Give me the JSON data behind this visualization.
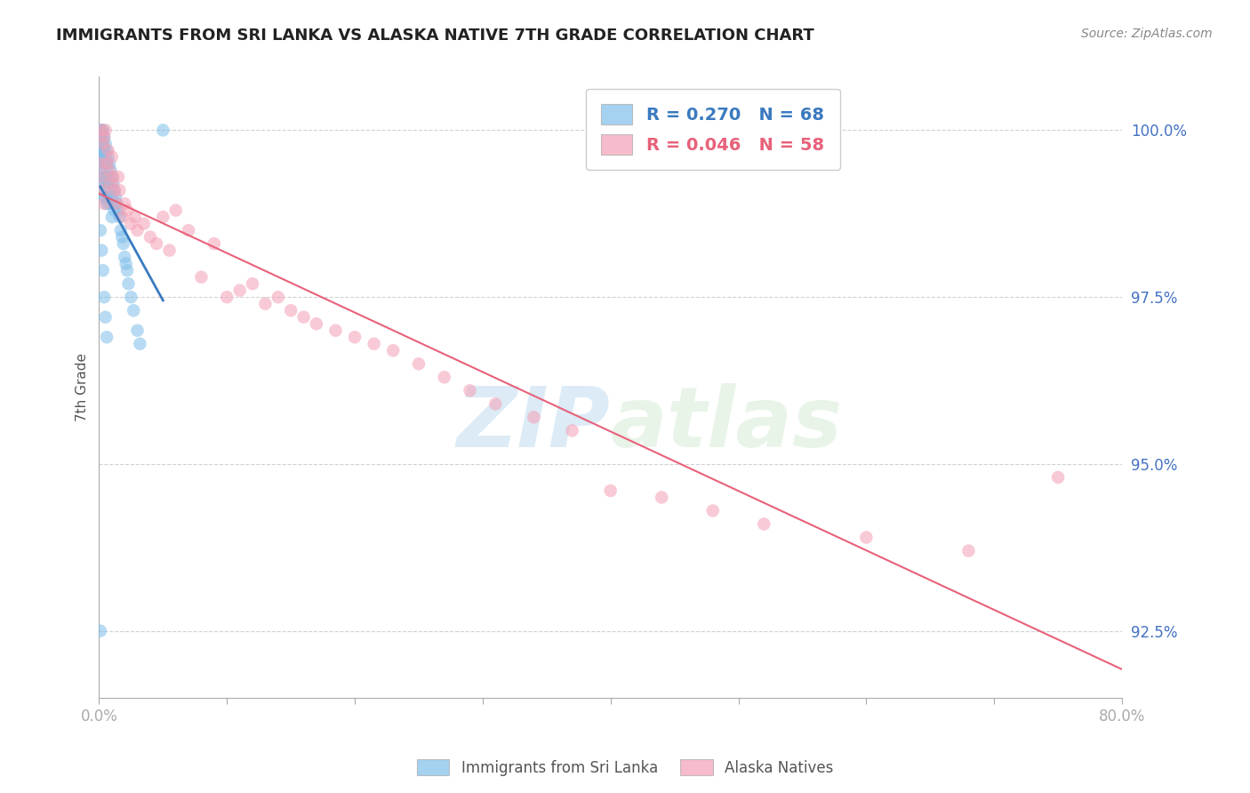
{
  "title": "IMMIGRANTS FROM SRI LANKA VS ALASKA NATIVE 7TH GRADE CORRELATION CHART",
  "source": "Source: ZipAtlas.com",
  "ylabel": "7th Grade",
  "xlim": [
    0.0,
    0.8
  ],
  "ylim": [
    91.5,
    100.8
  ],
  "xtick_values": [
    0.0,
    0.1,
    0.2,
    0.3,
    0.4,
    0.5,
    0.6,
    0.7,
    0.8
  ],
  "xtick_labels_visible": {
    "0.0": "0.0%",
    "0.80": "80.0%"
  },
  "ytick_values": [
    92.5,
    95.0,
    97.5,
    100.0
  ],
  "ytick_labels": [
    "92.5%",
    "95.0%",
    "97.5%",
    "100.0%"
  ],
  "blue_color": "#7fbfea",
  "pink_color": "#f4a0b5",
  "blue_line_color": "#3a7abf",
  "pink_line_color": "#e8617a",
  "R_blue": 0.27,
  "N_blue": 68,
  "R_pink": 0.046,
  "N_pink": 58,
  "legend_label_blue": "Immigrants from Sri Lanka",
  "legend_label_pink": "Alaska Natives",
  "watermark_zip": "ZIP",
  "watermark_atlas": "atlas",
  "blue_x": [
    0.001,
    0.001,
    0.001,
    0.001,
    0.001,
    0.002,
    0.002,
    0.002,
    0.002,
    0.002,
    0.002,
    0.003,
    0.003,
    0.003,
    0.003,
    0.003,
    0.003,
    0.004,
    0.004,
    0.004,
    0.004,
    0.004,
    0.005,
    0.005,
    0.005,
    0.005,
    0.006,
    0.006,
    0.006,
    0.006,
    0.007,
    0.007,
    0.007,
    0.008,
    0.008,
    0.008,
    0.009,
    0.009,
    0.01,
    0.01,
    0.01,
    0.011,
    0.011,
    0.012,
    0.012,
    0.013,
    0.014,
    0.015,
    0.016,
    0.017,
    0.018,
    0.019,
    0.02,
    0.021,
    0.022,
    0.023,
    0.025,
    0.027,
    0.03,
    0.032,
    0.001,
    0.002,
    0.003,
    0.004,
    0.005,
    0.006,
    0.05,
    0.001
  ],
  "blue_y": [
    100.0,
    99.9,
    99.8,
    99.7,
    99.5,
    100.0,
    99.9,
    99.8,
    99.6,
    99.4,
    99.2,
    100.0,
    99.8,
    99.7,
    99.5,
    99.3,
    99.1,
    99.9,
    99.7,
    99.5,
    99.3,
    99.0,
    99.8,
    99.6,
    99.3,
    99.0,
    99.7,
    99.5,
    99.2,
    98.9,
    99.6,
    99.3,
    99.0,
    99.5,
    99.2,
    98.9,
    99.4,
    99.1,
    99.3,
    99.0,
    98.7,
    99.2,
    98.9,
    99.1,
    98.8,
    99.0,
    98.9,
    98.8,
    98.7,
    98.5,
    98.4,
    98.3,
    98.1,
    98.0,
    97.9,
    97.7,
    97.5,
    97.3,
    97.0,
    96.8,
    98.5,
    98.2,
    97.9,
    97.5,
    97.2,
    96.9,
    100.0,
    92.5
  ],
  "pink_x": [
    0.002,
    0.003,
    0.004,
    0.005,
    0.006,
    0.007,
    0.008,
    0.009,
    0.01,
    0.011,
    0.012,
    0.013,
    0.015,
    0.016,
    0.018,
    0.02,
    0.022,
    0.025,
    0.028,
    0.03,
    0.035,
    0.04,
    0.045,
    0.05,
    0.055,
    0.06,
    0.07,
    0.08,
    0.09,
    0.1,
    0.11,
    0.12,
    0.13,
    0.14,
    0.15,
    0.16,
    0.17,
    0.185,
    0.2,
    0.215,
    0.23,
    0.25,
    0.27,
    0.29,
    0.31,
    0.34,
    0.37,
    0.4,
    0.44,
    0.48,
    0.52,
    0.6,
    0.68,
    0.75,
    0.001,
    0.002,
    0.003,
    0.004
  ],
  "pink_y": [
    100.0,
    99.8,
    99.9,
    100.0,
    99.5,
    99.7,
    99.4,
    99.2,
    99.6,
    99.3,
    99.1,
    98.9,
    99.3,
    99.1,
    98.7,
    98.9,
    98.8,
    98.6,
    98.7,
    98.5,
    98.6,
    98.4,
    98.3,
    98.7,
    98.2,
    98.8,
    98.5,
    97.8,
    98.3,
    97.5,
    97.6,
    97.7,
    97.4,
    97.5,
    97.3,
    97.2,
    97.1,
    97.0,
    96.9,
    96.8,
    96.7,
    96.5,
    96.3,
    96.1,
    95.9,
    95.7,
    95.5,
    94.6,
    94.5,
    94.3,
    94.1,
    93.9,
    93.7,
    94.8,
    99.5,
    99.3,
    99.1,
    98.9
  ]
}
